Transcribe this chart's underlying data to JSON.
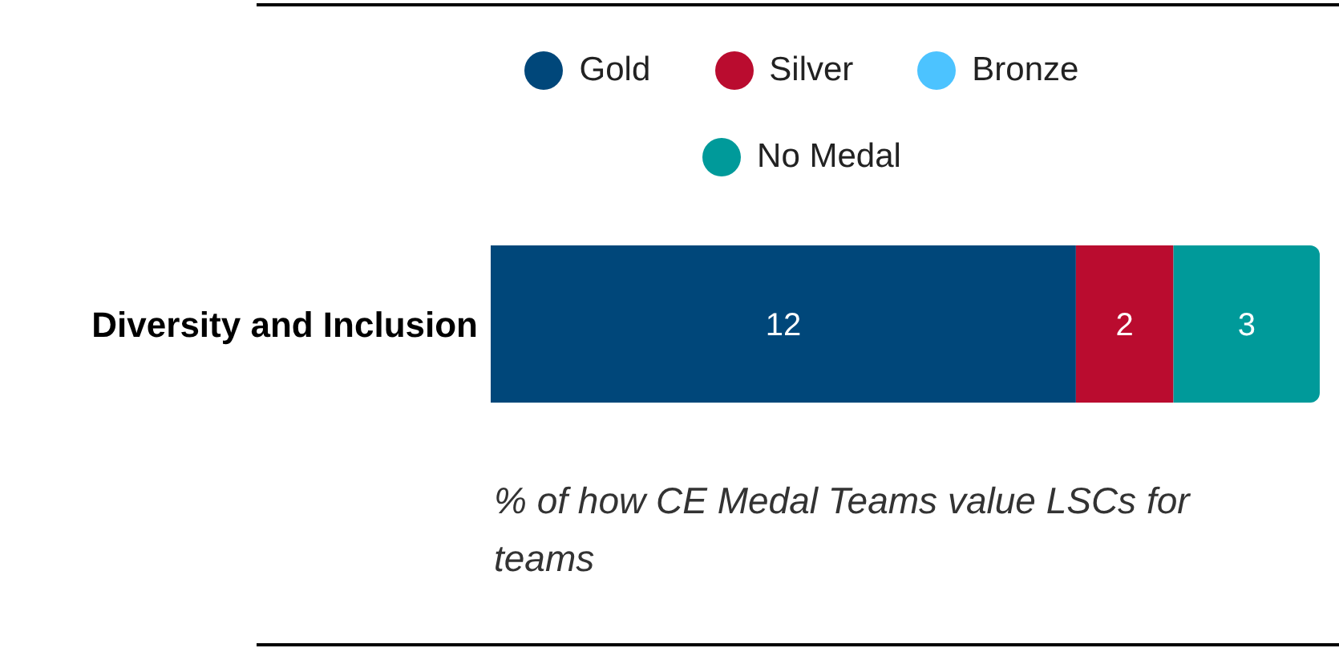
{
  "chart_data": {
    "type": "bar",
    "orientation": "horizontal",
    "stacked": true,
    "categories": [
      "Diversity and Inclusion"
    ],
    "series": [
      {
        "name": "Gold",
        "color": "#00477a",
        "values": [
          12
        ]
      },
      {
        "name": "Silver",
        "color": "#ba0c2f",
        "values": [
          2
        ]
      },
      {
        "name": "Bronze",
        "color": "#4cc3ff",
        "values": [
          null
        ]
      },
      {
        "name": "No Medal",
        "color": "#009a9a",
        "values": [
          3
        ]
      }
    ],
    "xlim": [
      0,
      17
    ],
    "tick_labels": "y",
    "data_labels": true,
    "legend": "top",
    "grid": false,
    "annotations": [
      "% of how CE Medal Teams value LSCs for teams"
    ]
  }
}
